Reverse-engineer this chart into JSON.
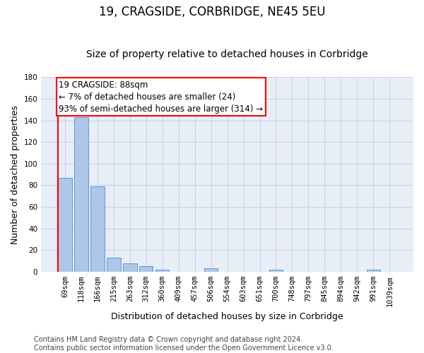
{
  "title": "19, CRAGSIDE, CORBRIDGE, NE45 5EU",
  "subtitle": "Size of property relative to detached houses in Corbridge",
  "xlabel": "Distribution of detached houses by size in Corbridge",
  "ylabel": "Number of detached properties",
  "bar_color": "#aec6e8",
  "bar_edge_color": "#5b9bd5",
  "background_color": "#e8eef8",
  "grid_color": "#c8d0e0",
  "categories": [
    "69sqm",
    "118sqm",
    "166sqm",
    "215sqm",
    "263sqm",
    "312sqm",
    "360sqm",
    "409sqm",
    "457sqm",
    "506sqm",
    "554sqm",
    "603sqm",
    "651sqm",
    "700sqm",
    "748sqm",
    "797sqm",
    "845sqm",
    "894sqm",
    "942sqm",
    "991sqm",
    "1039sqm"
  ],
  "values": [
    87,
    143,
    79,
    13,
    8,
    5,
    2,
    0,
    0,
    3,
    0,
    0,
    0,
    2,
    0,
    0,
    0,
    0,
    0,
    2,
    0
  ],
  "ylim": [
    0,
    180
  ],
  "yticks": [
    0,
    20,
    40,
    60,
    80,
    100,
    120,
    140,
    160,
    180
  ],
  "property_label": "19 CRAGSIDE: 88sqm",
  "annotation_line1": "← 7% of detached houses are smaller (24)",
  "annotation_line2": "93% of semi-detached houses are larger (314) →",
  "footer_line1": "Contains HM Land Registry data © Crown copyright and database right 2024.",
  "footer_line2": "Contains public sector information licensed under the Open Government Licence v3.0.",
  "title_fontsize": 12,
  "subtitle_fontsize": 10,
  "axis_label_fontsize": 9,
  "tick_fontsize": 7.5,
  "annotation_fontsize": 8.5,
  "footer_fontsize": 7
}
